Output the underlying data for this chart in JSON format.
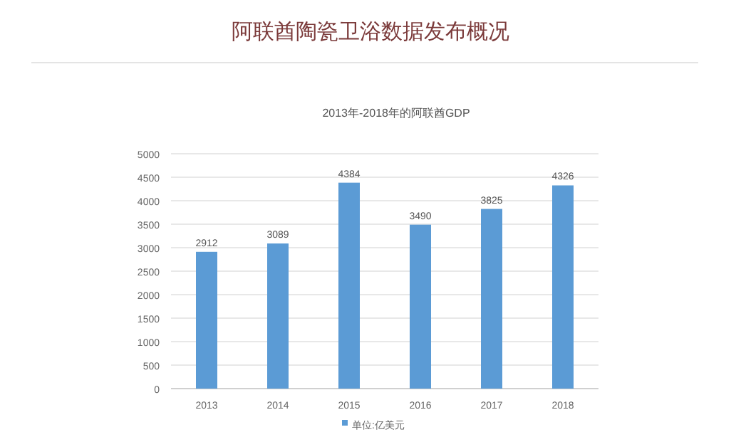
{
  "chart_data": {
    "type": "bar",
    "title": "阿联酋陶瓷卫浴数据发布概况",
    "subtitle": "2013年-2018年的阿联酋GDP",
    "categories": [
      "2013",
      "2014",
      "2015",
      "2016",
      "2017",
      "2018"
    ],
    "series": [
      {
        "name": "单位:亿美元",
        "color": "#5b9bd5",
        "values": [
          2912,
          3089,
          4384,
          3490,
          3825,
          4326
        ]
      }
    ],
    "ylim": [
      0,
      5000
    ],
    "yticks": [
      0,
      500,
      1000,
      1500,
      2000,
      2500,
      3000,
      3500,
      4000,
      4500,
      5000
    ],
    "grid": "y",
    "legend": "bottom",
    "data_labels": true
  }
}
